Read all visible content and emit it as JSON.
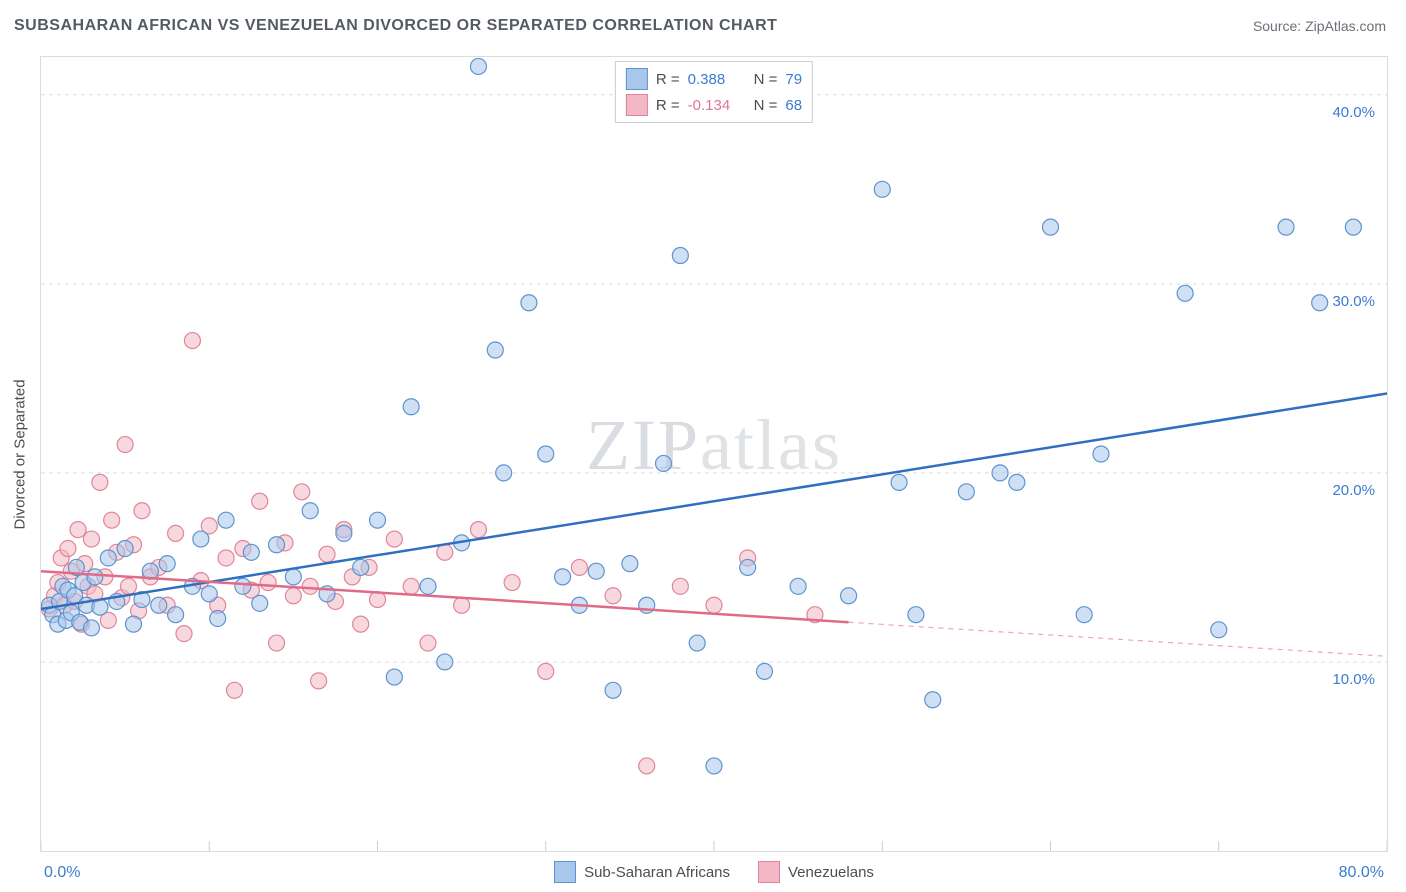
{
  "title": "SUBSAHARAN AFRICAN VS VENEZUELAN DIVORCED OR SEPARATED CORRELATION CHART",
  "source_label": "Source: ",
  "source_value": "ZipAtlas.com",
  "ylabel": "Divorced or Separated",
  "watermark_a": "ZIP",
  "watermark_b": "atlas",
  "chart": {
    "type": "scatter",
    "background_color": "#ffffff",
    "border_color": "#d8dde2",
    "grid_color": "#d8dde2",
    "grid_dash": "4 4",
    "xlim": [
      0,
      80
    ],
    "ylim": [
      0,
      42
    ],
    "x_ticks": [
      0,
      10,
      20,
      30,
      40,
      50,
      60,
      70,
      80
    ],
    "y_grid": [
      10,
      20,
      30,
      40
    ],
    "y_tick_labels": [
      "10.0%",
      "20.0%",
      "30.0%",
      "40.0%"
    ],
    "x_corner_left": "0.0%",
    "x_corner_right": "80.0%",
    "label_color": "#3b7bd1",
    "label_fontsize": 15,
    "marker_radius": 8,
    "marker_stroke_width": 1.2,
    "trend_line_width": 2.5,
    "series": [
      {
        "name": "Sub-Saharan Africans",
        "fill": "#a8c7eb",
        "stroke": "#5f93cf",
        "fill_opacity": 0.55,
        "R": "0.388",
        "N": "79",
        "trend": {
          "color": "#2f6fc0",
          "y_at_xmin": 12.8,
          "y_at_xmax": 24.2,
          "solid_until_x": 80
        },
        "points": [
          [
            0.5,
            13.0
          ],
          [
            0.7,
            12.5
          ],
          [
            1.0,
            12.0
          ],
          [
            1.1,
            13.2
          ],
          [
            1.3,
            14.0
          ],
          [
            1.5,
            12.2
          ],
          [
            1.6,
            13.8
          ],
          [
            1.8,
            12.6
          ],
          [
            2.0,
            13.5
          ],
          [
            2.1,
            15.0
          ],
          [
            2.3,
            12.1
          ],
          [
            2.5,
            14.2
          ],
          [
            2.7,
            13.0
          ],
          [
            3.0,
            11.8
          ],
          [
            3.2,
            14.5
          ],
          [
            3.5,
            12.9
          ],
          [
            4.0,
            15.5
          ],
          [
            4.5,
            13.2
          ],
          [
            5.0,
            16.0
          ],
          [
            5.5,
            12.0
          ],
          [
            6.0,
            13.3
          ],
          [
            6.5,
            14.8
          ],
          [
            7.0,
            13.0
          ],
          [
            7.5,
            15.2
          ],
          [
            8.0,
            12.5
          ],
          [
            9.0,
            14.0
          ],
          [
            9.5,
            16.5
          ],
          [
            10.0,
            13.6
          ],
          [
            10.5,
            12.3
          ],
          [
            11.0,
            17.5
          ],
          [
            12.0,
            14.0
          ],
          [
            12.5,
            15.8
          ],
          [
            13.0,
            13.1
          ],
          [
            14.0,
            16.2
          ],
          [
            15.0,
            14.5
          ],
          [
            16.0,
            18.0
          ],
          [
            17.0,
            13.6
          ],
          [
            18.0,
            16.8
          ],
          [
            19.0,
            15.0
          ],
          [
            20.0,
            17.5
          ],
          [
            21.0,
            9.2
          ],
          [
            22.0,
            23.5
          ],
          [
            23.0,
            14.0
          ],
          [
            24.0,
            10.0
          ],
          [
            25.0,
            16.3
          ],
          [
            26.0,
            41.5
          ],
          [
            27.0,
            26.5
          ],
          [
            27.5,
            20.0
          ],
          [
            29.0,
            29.0
          ],
          [
            30.0,
            21.0
          ],
          [
            31.0,
            14.5
          ],
          [
            32.0,
            13.0
          ],
          [
            33.0,
            14.8
          ],
          [
            34.0,
            8.5
          ],
          [
            35.0,
            15.2
          ],
          [
            36.0,
            13.0
          ],
          [
            37.0,
            20.5
          ],
          [
            38.0,
            31.5
          ],
          [
            39.0,
            11.0
          ],
          [
            40.0,
            4.5
          ],
          [
            42.0,
            15.0
          ],
          [
            43.0,
            9.5
          ],
          [
            45.0,
            14.0
          ],
          [
            48.0,
            13.5
          ],
          [
            50.0,
            35.0
          ],
          [
            51.0,
            19.5
          ],
          [
            52.0,
            12.5
          ],
          [
            53.0,
            8.0
          ],
          [
            55.0,
            19.0
          ],
          [
            57.0,
            20.0
          ],
          [
            58.0,
            19.5
          ],
          [
            60.0,
            33.0
          ],
          [
            62.0,
            12.5
          ],
          [
            63.0,
            21.0
          ],
          [
            68.0,
            29.5
          ],
          [
            70.0,
            11.7
          ],
          [
            74.0,
            33.0
          ],
          [
            76.0,
            29.0
          ],
          [
            78.0,
            33.0
          ]
        ]
      },
      {
        "name": "Venezuelans",
        "fill": "#f3b8c5",
        "stroke": "#e08598",
        "fill_opacity": 0.55,
        "R": "-0.134",
        "N": "68",
        "trend": {
          "color": "#e06b87",
          "y_at_xmin": 14.8,
          "y_at_xmax": 10.3,
          "solid_until_x": 48
        },
        "points": [
          [
            0.5,
            12.8
          ],
          [
            0.8,
            13.5
          ],
          [
            1.0,
            14.2
          ],
          [
            1.2,
            15.5
          ],
          [
            1.4,
            13.0
          ],
          [
            1.6,
            16.0
          ],
          [
            1.8,
            14.8
          ],
          [
            2.0,
            13.2
          ],
          [
            2.2,
            17.0
          ],
          [
            2.4,
            12.0
          ],
          [
            2.6,
            15.2
          ],
          [
            2.8,
            14.0
          ],
          [
            3.0,
            16.5
          ],
          [
            3.2,
            13.6
          ],
          [
            3.5,
            19.5
          ],
          [
            3.8,
            14.5
          ],
          [
            4.0,
            12.2
          ],
          [
            4.2,
            17.5
          ],
          [
            4.5,
            15.8
          ],
          [
            4.8,
            13.4
          ],
          [
            5.0,
            21.5
          ],
          [
            5.2,
            14.0
          ],
          [
            5.5,
            16.2
          ],
          [
            5.8,
            12.7
          ],
          [
            6.0,
            18.0
          ],
          [
            6.5,
            14.5
          ],
          [
            7.0,
            15.0
          ],
          [
            7.5,
            13.0
          ],
          [
            8.0,
            16.8
          ],
          [
            8.5,
            11.5
          ],
          [
            9.0,
            27.0
          ],
          [
            9.5,
            14.3
          ],
          [
            10.0,
            17.2
          ],
          [
            10.5,
            13.0
          ],
          [
            11.0,
            15.5
          ],
          [
            11.5,
            8.5
          ],
          [
            12.0,
            16.0
          ],
          [
            12.5,
            13.8
          ],
          [
            13.0,
            18.5
          ],
          [
            13.5,
            14.2
          ],
          [
            14.0,
            11.0
          ],
          [
            14.5,
            16.3
          ],
          [
            15.0,
            13.5
          ],
          [
            15.5,
            19.0
          ],
          [
            16.0,
            14.0
          ],
          [
            16.5,
            9.0
          ],
          [
            17.0,
            15.7
          ],
          [
            17.5,
            13.2
          ],
          [
            18.0,
            17.0
          ],
          [
            18.5,
            14.5
          ],
          [
            19.0,
            12.0
          ],
          [
            19.5,
            15.0
          ],
          [
            20.0,
            13.3
          ],
          [
            21.0,
            16.5
          ],
          [
            22.0,
            14.0
          ],
          [
            23.0,
            11.0
          ],
          [
            24.0,
            15.8
          ],
          [
            25.0,
            13.0
          ],
          [
            26.0,
            17.0
          ],
          [
            28.0,
            14.2
          ],
          [
            30.0,
            9.5
          ],
          [
            32.0,
            15.0
          ],
          [
            34.0,
            13.5
          ],
          [
            36.0,
            4.5
          ],
          [
            38.0,
            14.0
          ],
          [
            40.0,
            13.0
          ],
          [
            42.0,
            15.5
          ],
          [
            46.0,
            12.5
          ]
        ]
      }
    ],
    "legend_box": {
      "r_label": "R =",
      "n_label": "N ="
    },
    "footer_legend": [
      {
        "label": "Sub-Saharan Africans",
        "fill": "#a8c7eb",
        "stroke": "#5f93cf"
      },
      {
        "label": "Venezuelans",
        "fill": "#f3b8c5",
        "stroke": "#e08598"
      }
    ]
  }
}
